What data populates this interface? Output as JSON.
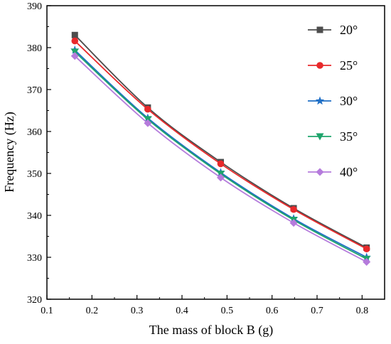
{
  "chart_data": {
    "type": "line",
    "title": "",
    "xlabel": "The mass of block B (g)",
    "ylabel": "Frequency (Hz)",
    "xlim": [
      0.1,
      0.85
    ],
    "ylim": [
      320,
      390
    ],
    "x_ticks": [
      "0.1",
      "0.2",
      "0.3",
      "0.4",
      "0.5",
      "0.6",
      "0.7",
      "0.8"
    ],
    "y_ticks": [
      "320",
      "330",
      "340",
      "350",
      "360",
      "370",
      "380",
      "390"
    ],
    "x": [
      0.162,
      0.324,
      0.486,
      0.648,
      0.81
    ],
    "legend_position": "top-right",
    "grid": false,
    "series": [
      {
        "name": "20°",
        "color": "#4d4d4d",
        "marker": "square",
        "values": [
          383.0,
          365.7,
          352.7,
          341.7,
          332.3
        ]
      },
      {
        "name": "25°",
        "color": "#e8292b",
        "marker": "circle",
        "values": [
          381.6,
          365.3,
          352.3,
          341.4,
          332.0
        ]
      },
      {
        "name": "30°",
        "color": "#1f6fc6",
        "marker": "star",
        "values": [
          379.4,
          363.2,
          350.2,
          339.2,
          330.0
        ]
      },
      {
        "name": "35°",
        "color": "#1ea46b",
        "marker": "triangle-down",
        "values": [
          379.0,
          362.9,
          349.9,
          338.9,
          329.6
        ]
      },
      {
        "name": "40°",
        "color": "#b57bdc",
        "marker": "diamond",
        "values": [
          378.0,
          362.0,
          349.0,
          338.2,
          328.9
        ]
      }
    ]
  }
}
